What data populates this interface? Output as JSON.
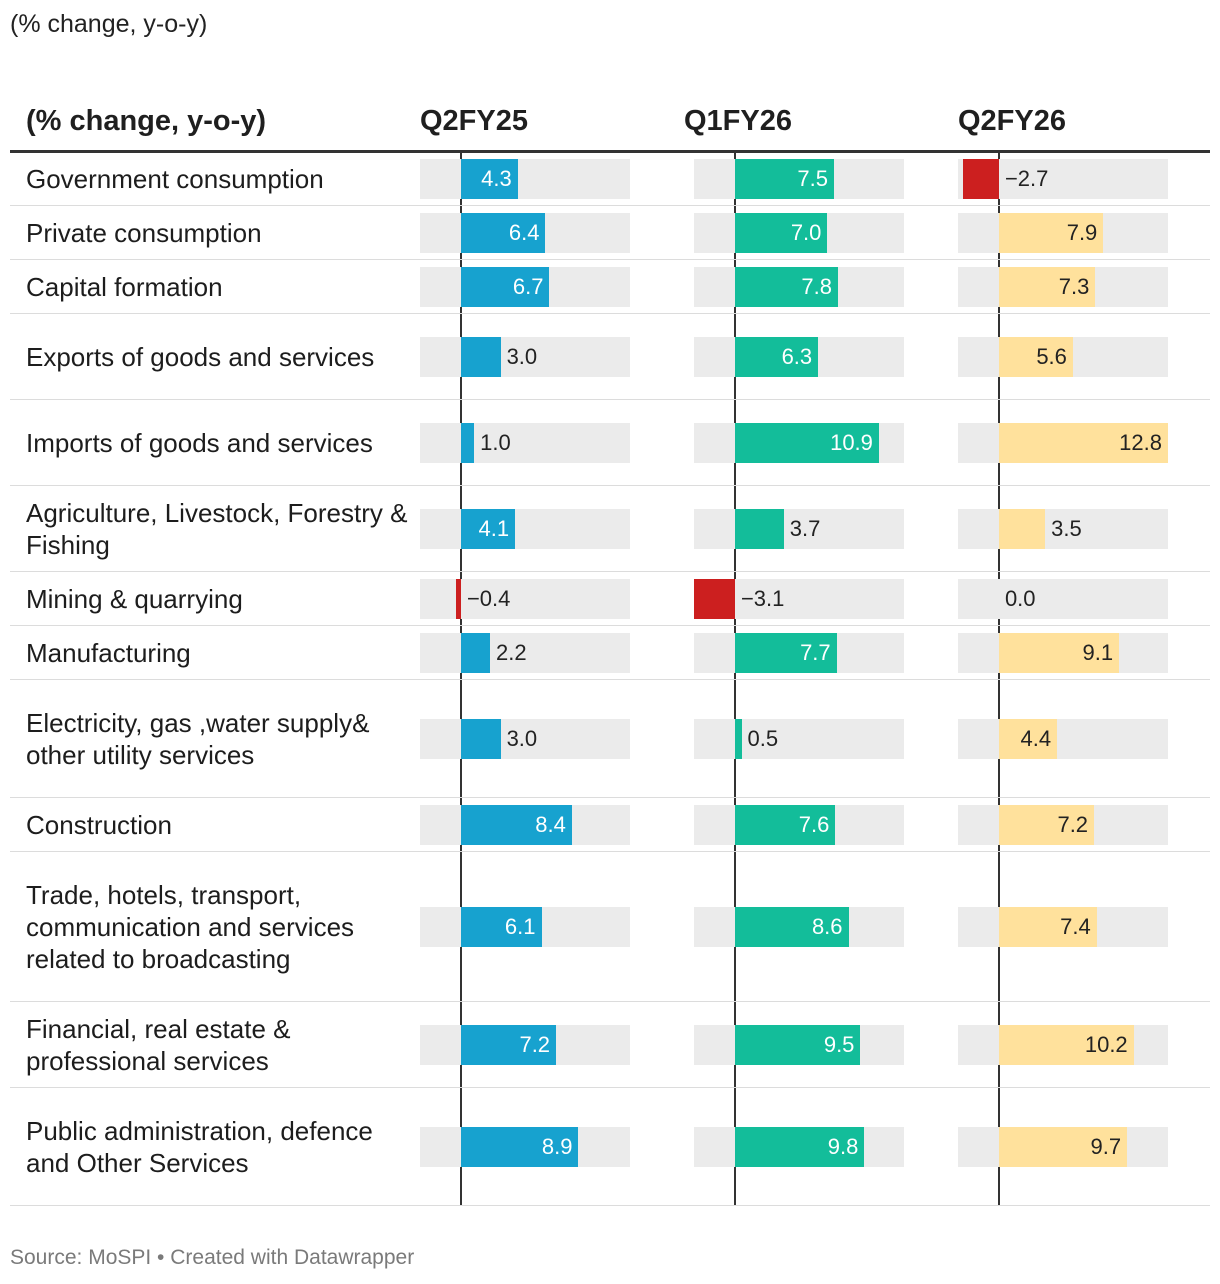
{
  "subtitle": "(% change, y-o-y)",
  "header": {
    "label": "(% change, y-o-y)",
    "series": [
      "Q2FY25",
      "Q1FY26",
      "Q2FY26"
    ]
  },
  "colors": {
    "q2fy25": "#17a2cf",
    "q1fy26": "#13bd9a",
    "q2fy26": "#ffe19c",
    "negative": "#cc1f1f",
    "track": "#ebebeb"
  },
  "chart_data": {
    "type": "table",
    "title": "(% change, y-o-y)",
    "xlim": [
      -3.1,
      12.8
    ],
    "series": [
      {
        "name": "Q2FY25",
        "values": [
          4.3,
          6.4,
          6.7,
          3.0,
          1.0,
          4.1,
          -0.4,
          2.2,
          3.0,
          8.4,
          6.1,
          7.2,
          8.9
        ]
      },
      {
        "name": "Q1FY26",
        "values": [
          7.5,
          7.0,
          7.8,
          6.3,
          10.9,
          3.7,
          -3.1,
          7.7,
          0.5,
          7.6,
          8.6,
          9.5,
          9.8
        ]
      },
      {
        "name": "Q2FY26",
        "values": [
          -2.7,
          7.9,
          7.3,
          5.6,
          12.8,
          3.5,
          0.0,
          9.1,
          4.4,
          7.2,
          7.4,
          10.2,
          9.7
        ]
      }
    ],
    "rows": [
      {
        "label": "Government consumption",
        "values": [
          "4.3",
          "7.5",
          "−2.7"
        ]
      },
      {
        "label": "Private consumption",
        "values": [
          "6.4",
          "7.0",
          "7.9"
        ]
      },
      {
        "label": "Capital formation",
        "values": [
          "6.7",
          "7.8",
          "7.3"
        ]
      },
      {
        "label": "Exports of goods and services",
        "values": [
          "3.0",
          "6.3",
          "5.6"
        ]
      },
      {
        "label": "Imports of goods and services",
        "values": [
          "1.0",
          "10.9",
          "12.8"
        ]
      },
      {
        "label": "Agriculture, Livestock, Forestry & Fishing",
        "values": [
          "4.1",
          "3.7",
          "3.5"
        ]
      },
      {
        "label": "Mining & quarrying",
        "values": [
          "−0.4",
          "−3.1",
          "0.0"
        ]
      },
      {
        "label": "Manufacturing",
        "values": [
          "2.2",
          "7.7",
          "9.1"
        ]
      },
      {
        "label": "Electricity, gas ,water supply& other utility services",
        "values": [
          "3.0",
          "0.5",
          "4.4"
        ]
      },
      {
        "label": "Construction",
        "values": [
          "8.4",
          "7.6",
          "7.2"
        ]
      },
      {
        "label": "Trade, hotels, transport, communication and services related to broadcasting",
        "values": [
          "6.1",
          "8.6",
          "7.4"
        ]
      },
      {
        "label": "Financial, real estate & professional services",
        "values": [
          "7.2",
          "9.5",
          "10.2"
        ]
      },
      {
        "label": "Public administration, defence and Other Services",
        "values": [
          "8.9",
          "9.8",
          "9.7"
        ]
      }
    ]
  },
  "footer": "Source: MoSPI • Created with Datawrapper"
}
